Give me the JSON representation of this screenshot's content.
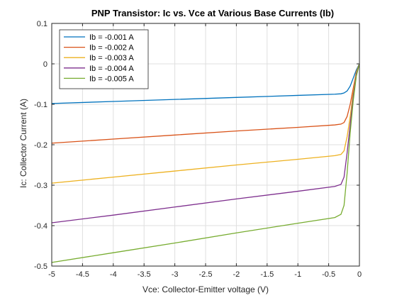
{
  "chart_data": {
    "type": "line",
    "title": "PNP Transistor: Ic vs. Vce at Various Base Currents (Ib)",
    "xlabel": "Vce: Collector-Emitter voltage (V)",
    "ylabel": "Ic: Collector Current (A)",
    "xlim": [
      -5,
      0
    ],
    "ylim": [
      -0.5,
      0.1
    ],
    "xticks": [
      -5,
      -4.5,
      -4,
      -3.5,
      -3,
      -2.5,
      -2,
      -1.5,
      -1,
      -0.5,
      0
    ],
    "xtick_labels": [
      "-5",
      "-4.5",
      "-4",
      "-3.5",
      "-3",
      "-2.5",
      "-2",
      "-1.5",
      "-1",
      "-0.5",
      "0"
    ],
    "yticks": [
      -0.5,
      -0.4,
      -0.3,
      -0.2,
      -0.1,
      0,
      0.1
    ],
    "ytick_labels": [
      "-0.5",
      "-0.4",
      "-0.3",
      "-0.2",
      "-0.1",
      "0",
      "0.1"
    ],
    "grid": true,
    "legend_position": "top-left",
    "series": [
      {
        "name": "Ib = -0.001 A",
        "color": "#0072BD",
        "x": [
          -5,
          -4,
          -3,
          -2,
          -1,
          -0.4,
          -0.3,
          -0.25,
          -0.2,
          -0.15,
          -0.1,
          -0.05,
          0
        ],
        "y": [
          -0.098,
          -0.093,
          -0.088,
          -0.083,
          -0.078,
          -0.075,
          -0.074,
          -0.072,
          -0.067,
          -0.055,
          -0.035,
          -0.015,
          0
        ]
      },
      {
        "name": "Ib = -0.002 A",
        "color": "#D95319",
        "x": [
          -5,
          -4,
          -3,
          -2,
          -1,
          -0.4,
          -0.3,
          -0.25,
          -0.2,
          -0.15,
          -0.1,
          -0.05,
          0
        ],
        "y": [
          -0.196,
          -0.186,
          -0.176,
          -0.166,
          -0.157,
          -0.151,
          -0.149,
          -0.145,
          -0.13,
          -0.1,
          -0.06,
          -0.02,
          0
        ]
      },
      {
        "name": "Ib = -0.003 A",
        "color": "#EDB120",
        "x": [
          -5,
          -4,
          -3,
          -2,
          -1,
          -0.4,
          -0.3,
          -0.25,
          -0.2,
          -0.15,
          -0.1,
          -0.05,
          0
        ],
        "y": [
          -0.295,
          -0.28,
          -0.265,
          -0.25,
          -0.236,
          -0.227,
          -0.224,
          -0.215,
          -0.18,
          -0.13,
          -0.07,
          -0.02,
          0
        ]
      },
      {
        "name": "Ib = -0.004 A",
        "color": "#7E2F8E",
        "x": [
          -5,
          -4,
          -3,
          -2,
          -1,
          -0.4,
          -0.3,
          -0.25,
          -0.2,
          -0.15,
          -0.1,
          -0.05,
          0
        ],
        "y": [
          -0.393,
          -0.374,
          -0.354,
          -0.334,
          -0.315,
          -0.303,
          -0.298,
          -0.28,
          -0.22,
          -0.15,
          -0.08,
          -0.025,
          0
        ]
      },
      {
        "name": "Ib = -0.005 A",
        "color": "#77AC30",
        "x": [
          -5,
          -4,
          -3,
          -2,
          -1,
          -0.4,
          -0.3,
          -0.25,
          -0.2,
          -0.15,
          -0.1,
          -0.05,
          0
        ],
        "y": [
          -0.491,
          -0.467,
          -0.443,
          -0.418,
          -0.394,
          -0.38,
          -0.372,
          -0.35,
          -0.27,
          -0.17,
          -0.09,
          -0.03,
          0
        ]
      }
    ]
  }
}
